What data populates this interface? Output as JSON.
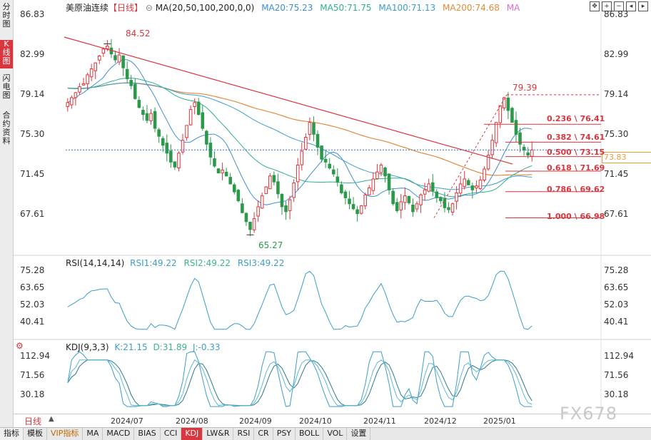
{
  "left_tabs": [
    {
      "label": "分时图",
      "active": false
    },
    {
      "label": "K线图",
      "active": true
    },
    {
      "label": "闪电图",
      "active": false
    },
    {
      "label": "合约资料",
      "active": false
    }
  ],
  "chart_header": {
    "symbol": "美原油连续",
    "period_tag": "【日线】",
    "ma_label": "MA(20,50,100,200,0,0)",
    "ma20": "MA20:75.23",
    "ma50": "MA50:71.75",
    "ma100": "MA100:71.13",
    "ma200": "MA200:74.68",
    "ma_extra": "MA",
    "colors": {
      "ma20": "#3d8fd6",
      "ma50": "#2fb08f",
      "ma100": "#3c9ec9",
      "ma200": "#e08b3a",
      "ma_extra": "#d96bd0"
    }
  },
  "price_axis": [
    "86.83",
    "82.99",
    "79.14",
    "75.30",
    "71.45",
    "67.61"
  ],
  "annotations": {
    "high": "84.52",
    "low": "65.27",
    "swing_high": "79.39",
    "last_price": "73.83"
  },
  "fib_levels": [
    {
      "label": "0.236 \\ 76.41",
      "value": 76.41
    },
    {
      "label": "0.382 \\ 74.61",
      "value": 74.61
    },
    {
      "label": "0.500 \\ 73.15",
      "value": 73.15
    },
    {
      "label": "0.618 \\ 71.69",
      "value": 71.69
    },
    {
      "label": "0.786 \\ 69.62",
      "value": 69.62
    },
    {
      "label": "1.000 \\ 66.98",
      "value": 66.98
    }
  ],
  "rsi_header": {
    "label": "RSI(14,14,14)",
    "rsi1": "RSI1:49.22",
    "rsi2": "RSI2:49.22",
    "rsi3": "RSI3:49.22"
  },
  "rsi_axis": [
    "75.28",
    "63.65",
    "52.03",
    "40.41"
  ],
  "kdj_header": {
    "label": "KDJ(9,3,3)",
    "k": "K:21.15",
    "d": "D:31.89",
    "j": "J:-0.33"
  },
  "kdj_axis": [
    "112.94",
    "71.56",
    "30.18"
  ],
  "dates": [
    "2024/07",
    "2024/08",
    "2024/09",
    "2024/10",
    "2024/11",
    "2024/12",
    "2025/01"
  ],
  "period_button": "日线",
  "bottom_tabs": [
    "指标",
    "模板",
    "VIP指标",
    "MA",
    "MACD",
    "BIAS",
    "CCI",
    "KDJ",
    "LW&R",
    "RSI",
    "CR",
    "PSY",
    "BOLL",
    "VOL",
    "设置"
  ],
  "active_bottom_tab": "KDJ",
  "watermark": "FX678",
  "chart_data": {
    "type": "candlestick",
    "price_range": [
      64.5,
      87.5
    ],
    "close_series": [
      78.6,
      79.1,
      79.6,
      80.2,
      80.5,
      81.4,
      82.0,
      82.6,
      83.3,
      84.0,
      84.3,
      83.5,
      82.9,
      83.4,
      82.1,
      81.0,
      80.3,
      79.0,
      78.1,
      77.4,
      76.8,
      77.5,
      76.0,
      75.2,
      74.3,
      73.5,
      72.6,
      72.1,
      73.5,
      74.8,
      76.3,
      77.9,
      78.6,
      77.4,
      76.0,
      74.4,
      73.1,
      72.2,
      71.5,
      71.8,
      71.2,
      70.4,
      69.6,
      68.7,
      67.5,
      66.6,
      65.8,
      66.9,
      68.1,
      69.2,
      70.1,
      71.2,
      70.6,
      69.4,
      68.1,
      67.6,
      68.8,
      70.5,
      72.3,
      73.7,
      75.1,
      76.6,
      75.4,
      74.1,
      72.9,
      72.6,
      72.0,
      71.4,
      70.6,
      69.5,
      69.0,
      68.4,
      67.9,
      67.4,
      68.2,
      69.3,
      70.0,
      70.9,
      71.6,
      72.3,
      71.2,
      69.8,
      68.4,
      67.7,
      68.6,
      69.2,
      68.5,
      67.6,
      68.4,
      69.3,
      69.8,
      70.4,
      69.7,
      69.0,
      68.7,
      68.0,
      67.8,
      68.4,
      69.5,
      70.4,
      70.9,
      70.3,
      69.8,
      70.2,
      70.8,
      71.9,
      73.3,
      74.8,
      76.6,
      78.3,
      79.1,
      77.8,
      76.6,
      75.4,
      74.4,
      73.8,
      73.3,
      73.83
    ],
    "high": 84.52,
    "low": 65.27,
    "last": 73.83
  }
}
